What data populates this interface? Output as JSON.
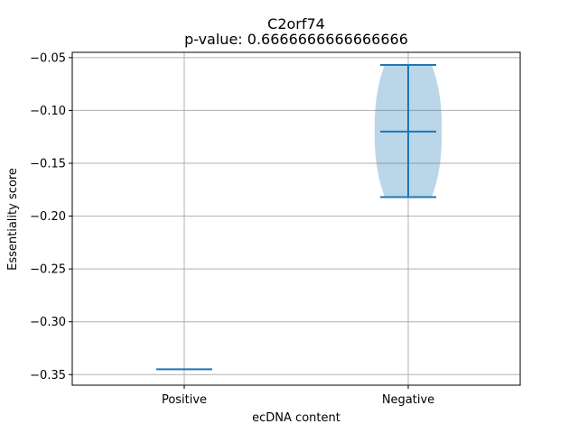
{
  "chart_data": {
    "type": "violin",
    "title": "C2orf74",
    "subtitle": "p-value: 0.6666666666666666",
    "xlabel": "ecDNA content",
    "ylabel": "Essentiality score",
    "categories": [
      "Positive",
      "Negative"
    ],
    "groups": [
      {
        "category": "Positive",
        "min": -0.345,
        "median": -0.345,
        "max": -0.345
      },
      {
        "category": "Negative",
        "min": -0.182,
        "median": -0.12,
        "max": -0.057
      }
    ],
    "ylim": [
      -0.36,
      -0.045
    ],
    "yticks": [
      -0.35,
      -0.3,
      -0.25,
      -0.2,
      -0.15,
      -0.1,
      -0.05
    ],
    "ytick_labels": [
      "−0.35",
      "−0.30",
      "−0.25",
      "−0.20",
      "−0.15",
      "−0.10",
      "−0.05"
    ],
    "grid": true,
    "colors": {
      "series": "#1f77b4",
      "grid": "#b0b0b0",
      "axis": "#000000"
    }
  }
}
